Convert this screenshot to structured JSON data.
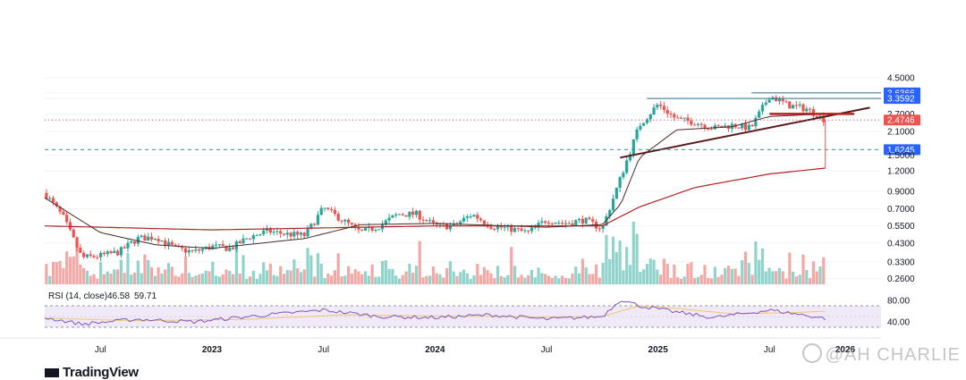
{
  "colors": {
    "up": "#26a69a",
    "down": "#ef5350",
    "up_volume": "#8fd3cb",
    "down_volume": "#f4a8a6",
    "ma_long": "#b22222",
    "ma_short": "#4a2a2a",
    "trendline": "#5b1a1a",
    "horizontal_line": "#2e6f8f",
    "badge_blue": "#2962ff",
    "badge_red": "#ef5350",
    "rsi_line": "#7e57c2",
    "rsi_ma": "#f5c46b",
    "rsi_band": "#efe9f8"
  },
  "chart_data": [
    {
      "type": "candlestick",
      "title": "",
      "y_scale": "log",
      "y_ticks": [
        "4.5000",
        "3.6366",
        "3.3592",
        "2.7000",
        "2.4746",
        "2.1000",
        "1.6245",
        "1.5000",
        "1.2000",
        "0.9000",
        "0.7000",
        "0.5500",
        "0.4300",
        "0.3300",
        "0.2600"
      ],
      "price_badges": [
        {
          "label": "3.6366",
          "color": "blue"
        },
        {
          "label": "3.3592",
          "color": "blue"
        },
        {
          "label": "2.4746",
          "color": "red"
        },
        {
          "label": "1.6245",
          "color": "blue"
        }
      ],
      "x_ticks": [
        {
          "label": "Jul",
          "bold": false
        },
        {
          "label": "2023",
          "bold": true
        },
        {
          "label": "Jul",
          "bold": false
        },
        {
          "label": "2024",
          "bold": true
        },
        {
          "label": "Jul",
          "bold": false
        },
        {
          "label": "2025",
          "bold": true
        },
        {
          "label": "Jul",
          "bold": false
        },
        {
          "label": "2026",
          "bold": true
        }
      ],
      "key_levels": {
        "current_price": 2.4746,
        "support": 1.6245,
        "resistance_1": 3.3592,
        "resistance_2": 3.6366,
        "ma_long_end": 1.25
      },
      "price_path": [
        [
          "2022-04",
          0.88
        ],
        [
          "2022-05",
          0.62
        ],
        [
          "2022-06",
          0.35
        ],
        [
          "2022-07",
          0.36
        ],
        [
          "2022-08",
          0.38
        ],
        [
          "2022-09",
          0.46
        ],
        [
          "2022-10",
          0.47
        ],
        [
          "2022-11",
          0.4
        ],
        [
          "2022-12",
          0.38
        ],
        [
          "2023-01",
          0.41
        ],
        [
          "2023-02",
          0.4
        ],
        [
          "2023-03",
          0.47
        ],
        [
          "2023-04",
          0.51
        ],
        [
          "2023-05",
          0.49
        ],
        [
          "2023-06",
          0.48
        ],
        [
          "2023-07",
          0.71
        ],
        [
          "2023-08",
          0.6
        ],
        [
          "2023-09",
          0.5
        ],
        [
          "2023-10",
          0.55
        ],
        [
          "2023-11",
          0.65
        ],
        [
          "2023-12",
          0.65
        ],
        [
          "2024-01",
          0.55
        ],
        [
          "2024-02",
          0.55
        ],
        [
          "2024-03",
          0.65
        ],
        [
          "2024-04",
          0.55
        ],
        [
          "2024-05",
          0.53
        ],
        [
          "2024-06",
          0.5
        ],
        [
          "2024-07",
          0.6
        ],
        [
          "2024-08",
          0.57
        ],
        [
          "2024-09",
          0.6
        ],
        [
          "2024-10",
          0.53
        ],
        [
          "2024-11",
          1.1
        ],
        [
          "2024-12",
          2.3
        ],
        [
          "2025-01",
          3.1
        ],
        [
          "2025-02",
          2.5
        ],
        [
          "2025-03",
          2.4
        ],
        [
          "2025-04",
          2.2
        ],
        [
          "2025-05",
          2.3
        ],
        [
          "2025-06",
          2.2
        ],
        [
          "2025-07",
          3.5
        ],
        [
          "2025-08",
          3.05
        ],
        [
          "2025-09",
          2.9
        ],
        [
          "2025-10",
          2.4746
        ]
      ],
      "ma_long_path": [
        [
          "2022-04",
          0.55
        ],
        [
          "2023-01",
          0.52
        ],
        [
          "2024-01",
          0.55
        ],
        [
          "2024-10",
          0.55
        ],
        [
          "2024-12",
          0.72
        ],
        [
          "2025-03",
          0.95
        ],
        [
          "2025-07",
          1.15
        ],
        [
          "2025-10",
          1.25
        ]
      ],
      "ma_short_path": [
        [
          "2022-04",
          0.82
        ],
        [
          "2022-07",
          0.5
        ],
        [
          "2022-10",
          0.42
        ],
        [
          "2023-01",
          0.4
        ],
        [
          "2023-06",
          0.46
        ],
        [
          "2023-09",
          0.56
        ],
        [
          "2024-01",
          0.57
        ],
        [
          "2024-07",
          0.54
        ],
        [
          "2024-10",
          0.56
        ],
        [
          "2024-11",
          0.75
        ],
        [
          "2024-12",
          1.45
        ],
        [
          "2025-02",
          2.15
        ],
        [
          "2025-05",
          2.25
        ],
        [
          "2025-07",
          2.6
        ],
        [
          "2025-10",
          2.7
        ]
      ]
    },
    {
      "type": "line",
      "title": "RSI (14, close)",
      "values_label": [
        "46.58",
        "59.71"
      ],
      "y_ticks": [
        "80.00",
        "40.00"
      ],
      "band": [
        30,
        70
      ],
      "rsi_path": [
        [
          "2022-04",
          48
        ],
        [
          "2022-06",
          36
        ],
        [
          "2022-09",
          45
        ],
        [
          "2022-12",
          40
        ],
        [
          "2023-03",
          50
        ],
        [
          "2023-07",
          62
        ],
        [
          "2023-10",
          50
        ],
        [
          "2024-01",
          48
        ],
        [
          "2024-04",
          53
        ],
        [
          "2024-07",
          45
        ],
        [
          "2024-10",
          50
        ],
        [
          "2024-11",
          82
        ],
        [
          "2024-12",
          70
        ],
        [
          "2025-02",
          58
        ],
        [
          "2025-04",
          48
        ],
        [
          "2025-07",
          62
        ],
        [
          "2025-09",
          52
        ],
        [
          "2025-10",
          46.58
        ]
      ],
      "rsi_ma_path": [
        [
          "2022-04",
          47
        ],
        [
          "2022-09",
          42
        ],
        [
          "2023-03",
          45
        ],
        [
          "2023-08",
          53
        ],
        [
          "2024-01",
          51
        ],
        [
          "2024-07",
          49
        ],
        [
          "2024-10",
          50
        ],
        [
          "2024-12",
          70
        ],
        [
          "2025-02",
          65
        ],
        [
          "2025-05",
          55
        ],
        [
          "2025-08",
          57
        ],
        [
          "2025-10",
          59.71
        ]
      ]
    }
  ],
  "branding": {
    "name": "TradingView",
    "watermark": "@AH CHARLIE"
  }
}
